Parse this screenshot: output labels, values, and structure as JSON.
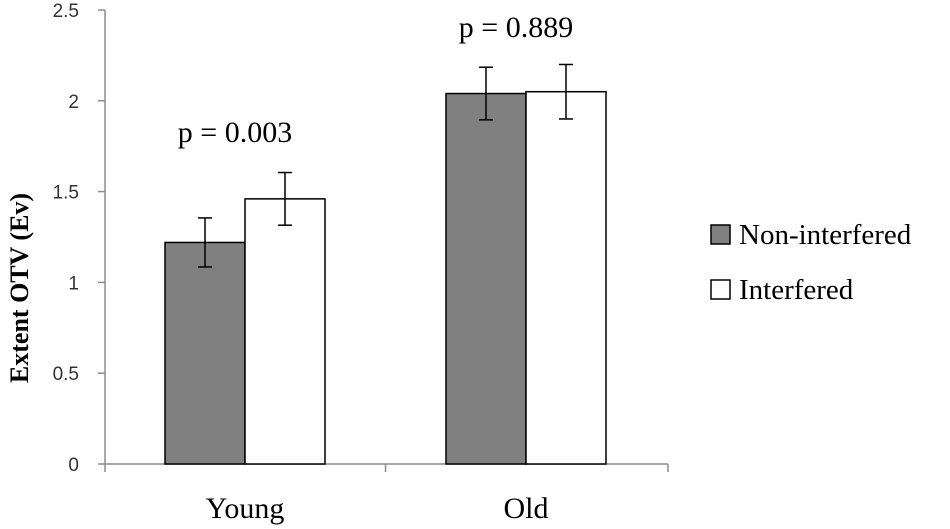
{
  "chart_data": {
    "type": "bar",
    "title": "",
    "xlabel": "",
    "ylabel": "Extent OTV (Ev)",
    "ylim": [
      0,
      2.5
    ],
    "yticks": [
      "0",
      "0.5",
      "1",
      "1.5",
      "2",
      "2.5"
    ],
    "categories": [
      "Young",
      "Old"
    ],
    "series": [
      {
        "name": "Non-interfered",
        "values": [
          1.22,
          2.04
        ],
        "errors": [
          0.135,
          0.145
        ],
        "color": "#808080"
      },
      {
        "name": "Interfered",
        "values": [
          1.46,
          2.05
        ],
        "errors": [
          0.145,
          0.15
        ],
        "color": "#ffffff"
      }
    ],
    "annotations": [
      "p = 0.003",
      "p = 0.889"
    ],
    "legend_position": "right",
    "grid": false
  }
}
